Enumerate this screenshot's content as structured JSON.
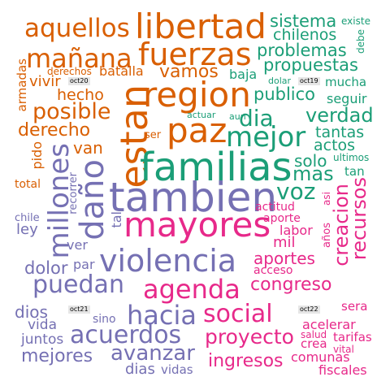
{
  "colors": {
    "orange": "#d95f02",
    "teal": "#1b9e77",
    "purple": "#7570b3",
    "pink": "#e7298a"
  },
  "labels": {
    "oct19": "oct19",
    "oct20": "oct20",
    "oct21": "oct21",
    "oct22": "oct22"
  },
  "words": {
    "aquellos": "aquellos",
    "libertad": "libertad",
    "fuerzas": "fuerzas",
    "manana": "mañana",
    "region": "region",
    "estan": "estan",
    "paz": "paz",
    "posible": "posible",
    "hecho": "hecho",
    "derecho": "derecho",
    "vamos": "vamos",
    "batalla": "batalla",
    "vivir": "vivir",
    "armadas": "armadas",
    "derechos": "derechos",
    "van": "van",
    "pido": "pido",
    "total": "total",
    "ser": "ser",
    "sistema": "sistema",
    "existe": "existe",
    "chilenos": "chilenos",
    "debe": "debe",
    "problemas": "problemas",
    "propuestas": "propuestas",
    "baja": "baja",
    "dolar": "dolar",
    "mucha": "mucha",
    "publico": "publico",
    "seguir": "seguir",
    "actuar": "actuar",
    "aun": "aun",
    "dia": "dia",
    "verdad": "verdad",
    "mejor": "mejor",
    "tantas": "tantas",
    "actos": "actos",
    "familias": "familias",
    "solo": "solo",
    "ultimos": "ultimos",
    "mas": "mas",
    "tan": "tan",
    "voz": "voz",
    "tambien": "tambien",
    "millones": "millones",
    "dano": "daño",
    "recorrer": "recorrer",
    "tal": "tal",
    "chile": "chile",
    "ley": "ley",
    "ver": "ver",
    "violencia": "violencia",
    "dolor": "dolor",
    "par": "par",
    "puedan": "puedan",
    "dios": "dios",
    "sino": "sino",
    "vida": "vida",
    "hacia": "hacia",
    "juntos": "juntos",
    "acuerdos": "acuerdos",
    "mejores": "mejores",
    "avanzar": "avanzar",
    "dias": "dias",
    "vidas": "vidas",
    "mayores": "mayores",
    "asi": "asi",
    "actitud": "actitud",
    "aporte": "aporte",
    "labor": "labor",
    "anos": "años",
    "mil": "mil",
    "creacion": "creacion",
    "recursos": "recursos",
    "aportes": "aportes",
    "acceso": "acceso",
    "agenda": "agenda",
    "congreso": "congreso",
    "social": "social",
    "sera": "sera",
    "acelerar": "acelerar",
    "proyecto": "proyecto",
    "salud": "salud",
    "tarifas": "tarifas",
    "crea": "crea",
    "vital": "vital",
    "ingresos": "ingresos",
    "comunas": "comunas",
    "fiscales": "fiscales"
  }
}
